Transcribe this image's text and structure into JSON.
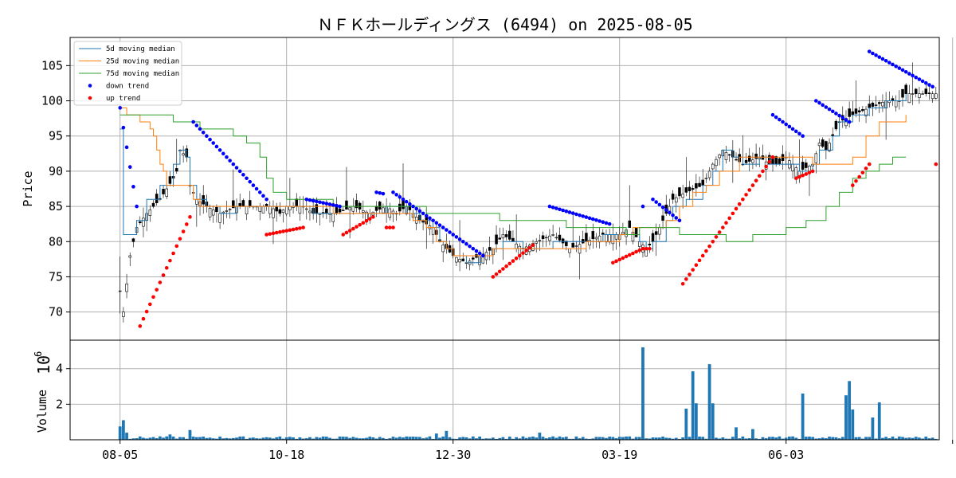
{
  "chart_data": {
    "type": "candlestick",
    "title": "ＮＦＫホールディングス (6494) on 2025-08-05",
    "price_panel": {
      "ylabel": "Price",
      "ylim": [
        66,
        109
      ],
      "yticks": [
        70,
        75,
        80,
        85,
        90,
        95,
        100,
        105
      ],
      "grid": true
    },
    "volume_panel": {
      "ylabel": "Volume",
      "scale_label": "10",
      "scale_exponent": "6",
      "ylim": [
        0,
        5.6
      ],
      "yticks": [
        2,
        4
      ],
      "grid": true
    },
    "x_axis": {
      "range": [
        -15,
        246
      ],
      "tick_positions": [
        0,
        50,
        100,
        150,
        200,
        250
      ],
      "tick_labels": [
        "08-05",
        "10-18",
        "12-30",
        "03-19",
        "06-03",
        ""
      ]
    },
    "legend": {
      "placement": "top-left",
      "entries": [
        {
          "label": " 5d moving median",
          "color": "#1f77b4",
          "kind": "line"
        },
        {
          "label": "25d moving median",
          "color": "#ff7f0e",
          "kind": "line"
        },
        {
          "label": "75d moving median",
          "color": "#2ca02c",
          "kind": "line"
        },
        {
          "label": "down trend",
          "color": "#0000ff",
          "kind": "dot"
        },
        {
          "label": "up trend",
          "color": "#ff0000",
          "kind": "dot"
        }
      ]
    },
    "price_anchors": [
      [
        0,
        73
      ],
      [
        1,
        70
      ],
      [
        3,
        78
      ],
      [
        5,
        82
      ],
      [
        8,
        84
      ],
      [
        12,
        86
      ],
      [
        16,
        89
      ],
      [
        17,
        90
      ],
      [
        18,
        93
      ],
      [
        20,
        92
      ],
      [
        21,
        88
      ],
      [
        23,
        86
      ],
      [
        26,
        85
      ],
      [
        30,
        84
      ],
      [
        35,
        85
      ],
      [
        45,
        85
      ],
      [
        48,
        84
      ],
      [
        50,
        85
      ],
      [
        55,
        85
      ],
      [
        58,
        84
      ],
      [
        65,
        84
      ],
      [
        70,
        85
      ],
      [
        75,
        84
      ],
      [
        80,
        85
      ],
      [
        83,
        84
      ],
      [
        86,
        85
      ],
      [
        90,
        83
      ],
      [
        94,
        82
      ],
      [
        96,
        80
      ],
      [
        98,
        79
      ],
      [
        100,
        78
      ],
      [
        104,
        77
      ],
      [
        108,
        78
      ],
      [
        112,
        79
      ],
      [
        115,
        81
      ],
      [
        118,
        80
      ],
      [
        121,
        79
      ],
      [
        125,
        80
      ],
      [
        130,
        81
      ],
      [
        135,
        79
      ],
      [
        140,
        80
      ],
      [
        145,
        81
      ],
      [
        150,
        81
      ],
      [
        153,
        82
      ],
      [
        156,
        80
      ],
      [
        158,
        79
      ],
      [
        160,
        80
      ],
      [
        164,
        84
      ],
      [
        166,
        86
      ],
      [
        170,
        87
      ],
      [
        175,
        88
      ],
      [
        178,
        91
      ],
      [
        181,
        93
      ],
      [
        184,
        92
      ],
      [
        187,
        91
      ],
      [
        192,
        92
      ],
      [
        195,
        91
      ],
      [
        198,
        91
      ],
      [
        200,
        92
      ],
      [
        204,
        90
      ],
      [
        208,
        91
      ],
      [
        210,
        94
      ],
      [
        212,
        93
      ],
      [
        214,
        95
      ],
      [
        216,
        97
      ],
      [
        220,
        98
      ],
      [
        225,
        99
      ],
      [
        230,
        100
      ],
      [
        234,
        100
      ],
      [
        236,
        101
      ]
    ],
    "median_5d": [
      [
        0,
        96
      ],
      [
        1,
        81
      ],
      [
        3,
        81
      ],
      [
        5,
        83
      ],
      [
        8,
        86
      ],
      [
        12,
        88
      ],
      [
        16,
        91
      ],
      [
        18,
        93
      ],
      [
        20,
        92
      ],
      [
        21,
        88
      ],
      [
        23,
        86
      ],
      [
        26,
        85
      ],
      [
        30,
        84
      ],
      [
        35,
        85
      ],
      [
        45,
        85
      ],
      [
        50,
        85
      ],
      [
        58,
        84
      ],
      [
        70,
        84
      ],
      [
        75,
        84
      ],
      [
        80,
        85
      ],
      [
        86,
        84
      ],
      [
        90,
        83
      ],
      [
        94,
        82
      ],
      [
        96,
        80
      ],
      [
        98,
        79
      ],
      [
        100,
        78
      ],
      [
        104,
        77
      ],
      [
        108,
        78
      ],
      [
        112,
        79
      ],
      [
        115,
        80
      ],
      [
        121,
        79
      ],
      [
        125,
        79
      ],
      [
        130,
        80
      ],
      [
        135,
        80
      ],
      [
        140,
        80
      ],
      [
        145,
        81
      ],
      [
        150,
        81
      ],
      [
        153,
        81
      ],
      [
        156,
        80
      ],
      [
        158,
        79
      ],
      [
        160,
        80
      ],
      [
        164,
        83
      ],
      [
        166,
        85
      ],
      [
        170,
        86
      ],
      [
        175,
        88
      ],
      [
        178,
        90
      ],
      [
        181,
        93
      ],
      [
        184,
        92
      ],
      [
        187,
        91
      ],
      [
        192,
        92
      ],
      [
        195,
        91
      ],
      [
        200,
        91
      ],
      [
        204,
        90
      ],
      [
        208,
        91
      ],
      [
        210,
        93
      ],
      [
        212,
        93
      ],
      [
        214,
        95
      ],
      [
        216,
        97
      ],
      [
        220,
        98
      ],
      [
        225,
        99
      ],
      [
        230,
        100
      ],
      [
        236,
        101
      ]
    ],
    "median_25d": [
      [
        0,
        99
      ],
      [
        2,
        98
      ],
      [
        6,
        97
      ],
      [
        9,
        96
      ],
      [
        10,
        95
      ],
      [
        11,
        93
      ],
      [
        12,
        91
      ],
      [
        13,
        90
      ],
      [
        14,
        88
      ],
      [
        20,
        88
      ],
      [
        22,
        86
      ],
      [
        24,
        85
      ],
      [
        40,
        85
      ],
      [
        60,
        85
      ],
      [
        64,
        84
      ],
      [
        74,
        84
      ],
      [
        82,
        84
      ],
      [
        88,
        83
      ],
      [
        92,
        82
      ],
      [
        95,
        80
      ],
      [
        98,
        79
      ],
      [
        100,
        78
      ],
      [
        104,
        78
      ],
      [
        112,
        79
      ],
      [
        122,
        79
      ],
      [
        130,
        79
      ],
      [
        140,
        80
      ],
      [
        146,
        80
      ],
      [
        150,
        81
      ],
      [
        154,
        82
      ],
      [
        160,
        82
      ],
      [
        164,
        83
      ],
      [
        168,
        85
      ],
      [
        172,
        87
      ],
      [
        176,
        88
      ],
      [
        180,
        90
      ],
      [
        186,
        92
      ],
      [
        200,
        92
      ],
      [
        208,
        91
      ],
      [
        215,
        91
      ],
      [
        220,
        92
      ],
      [
        224,
        95
      ],
      [
        228,
        97
      ],
      [
        236,
        98
      ]
    ],
    "median_75d": [
      [
        0,
        98
      ],
      [
        14,
        98
      ],
      [
        16,
        97
      ],
      [
        22,
        97
      ],
      [
        24,
        96
      ],
      [
        32,
        96
      ],
      [
        34,
        95
      ],
      [
        38,
        94
      ],
      [
        42,
        92
      ],
      [
        44,
        89
      ],
      [
        46,
        87
      ],
      [
        50,
        86
      ],
      [
        60,
        86
      ],
      [
        64,
        85
      ],
      [
        80,
        85
      ],
      [
        92,
        84
      ],
      [
        112,
        84
      ],
      [
        114,
        83
      ],
      [
        130,
        83
      ],
      [
        134,
        82
      ],
      [
        150,
        82
      ],
      [
        152,
        81
      ],
      [
        156,
        82
      ],
      [
        164,
        82
      ],
      [
        168,
        81
      ],
      [
        176,
        81
      ],
      [
        182,
        80
      ],
      [
        190,
        81
      ],
      [
        200,
        82
      ],
      [
        206,
        83
      ],
      [
        212,
        85
      ],
      [
        216,
        87
      ],
      [
        220,
        89
      ],
      [
        224,
        90
      ],
      [
        228,
        91
      ],
      [
        232,
        92
      ],
      [
        236,
        92
      ]
    ],
    "down_trend_segments": [
      {
        "start": 0,
        "end": 5,
        "from": 99,
        "to": 85
      },
      {
        "start": 22,
        "end": 44,
        "from": 97,
        "to": 86
      },
      {
        "start": 56,
        "end": 66,
        "from": 86,
        "to": 85
      },
      {
        "start": 77,
        "end": 79,
        "from": 87,
        "to": 86.8
      },
      {
        "start": 82,
        "end": 109,
        "from": 87,
        "to": 78
      },
      {
        "start": 129,
        "end": 147,
        "from": 85,
        "to": 82.5
      },
      {
        "start": 157,
        "end": 157,
        "from": 85,
        "to": 85
      },
      {
        "start": 160,
        "end": 168,
        "from": 86,
        "to": 83
      },
      {
        "start": 196,
        "end": 205,
        "from": 98,
        "to": 95
      },
      {
        "start": 209,
        "end": 219,
        "from": 100,
        "to": 97
      },
      {
        "start": 225,
        "end": 244,
        "from": 107,
        "to": 102
      }
    ],
    "up_trend_segments": [
      {
        "start": 6,
        "end": 21,
        "from": 68,
        "to": 83.5
      },
      {
        "start": 44,
        "end": 55,
        "from": 81,
        "to": 82
      },
      {
        "start": 67,
        "end": 76,
        "from": 81,
        "to": 83.5
      },
      {
        "start": 80,
        "end": 82,
        "from": 82,
        "to": 82
      },
      {
        "start": 112,
        "end": 124,
        "from": 75,
        "to": 79.5
      },
      {
        "start": 148,
        "end": 157,
        "from": 77,
        "to": 79
      },
      {
        "start": 158,
        "end": 159,
        "from": 79,
        "to": 79
      },
      {
        "start": 169,
        "end": 196,
        "from": 74,
        "to": 92
      },
      {
        "start": 203,
        "end": 208,
        "from": 89,
        "to": 90
      },
      {
        "start": 220,
        "end": 225,
        "from": 88,
        "to": 91
      },
      {
        "start": 245,
        "end": 245,
        "from": 91,
        "to": 91
      }
    ],
    "volume_spikes": [
      [
        0,
        0.75
      ],
      [
        1,
        1.1
      ],
      [
        2,
        0.4
      ],
      [
        15,
        0.3
      ],
      [
        21,
        0.55
      ],
      [
        95,
        0.35
      ],
      [
        98,
        0.5
      ],
      [
        126,
        0.4
      ],
      [
        157,
        5.2
      ],
      [
        170,
        1.75
      ],
      [
        172,
        3.85
      ],
      [
        173,
        2.05
      ],
      [
        177,
        4.25
      ],
      [
        178,
        2.05
      ],
      [
        185,
        0.7
      ],
      [
        190,
        0.6
      ],
      [
        205,
        2.6
      ],
      [
        218,
        2.5
      ],
      [
        219,
        3.3
      ],
      [
        220,
        1.7
      ],
      [
        226,
        1.25
      ],
      [
        228,
        2.1
      ]
    ],
    "volume_base": 0.12
  },
  "colors": {
    "median_5d": "#1f77b4",
    "median_25d": "#ff7f0e",
    "median_75d": "#2ca02c",
    "down_trend": "#0000ff",
    "up_trend": "#ff0000",
    "volume": "#1f77b4",
    "candle": "#000000",
    "grid": "#b0b0b0"
  }
}
